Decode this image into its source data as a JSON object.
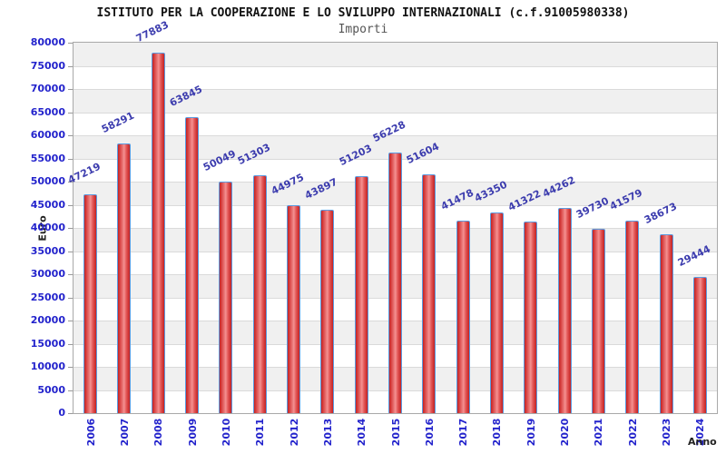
{
  "chart_data": {
    "type": "bar",
    "title": "ISTITUTO PER LA COOPERAZIONE E LO SVILUPPO INTERNAZIONALI (c.f.91005980338)",
    "subtitle": "Importi",
    "xlabel": "Anno",
    "ylabel": "Euro",
    "categories": [
      "2006",
      "2007",
      "2008",
      "2009",
      "2010",
      "2011",
      "2012",
      "2013",
      "2014",
      "2015",
      "2016",
      "2017",
      "2018",
      "2019",
      "2020",
      "2021",
      "2022",
      "2023",
      "2024"
    ],
    "values": [
      47219,
      58291,
      77883,
      63845,
      50049,
      51303,
      44975,
      43897,
      51203,
      56228,
      51604,
      41478,
      43350,
      41322,
      44262,
      39730,
      41579,
      38673,
      29444
    ],
    "ylim": [
      0,
      80000
    ],
    "ytick_step": 5000,
    "legend": "none",
    "grid": "horizontal alternating bands",
    "colors": {
      "bar_fill_dark": "#c32222",
      "bar_fill_light": "#f59090",
      "bar_border": "#5b9be0",
      "tick_label": "#2323cc",
      "value_label": "#3c3cae",
      "band_gray": "#f0f0f0",
      "band_white": "#ffffff",
      "grid_line": "#dadada",
      "plot_border": "#a9a9a9",
      "title": "#111111",
      "subtitle": "#555555",
      "axis_label": "#222222"
    }
  }
}
